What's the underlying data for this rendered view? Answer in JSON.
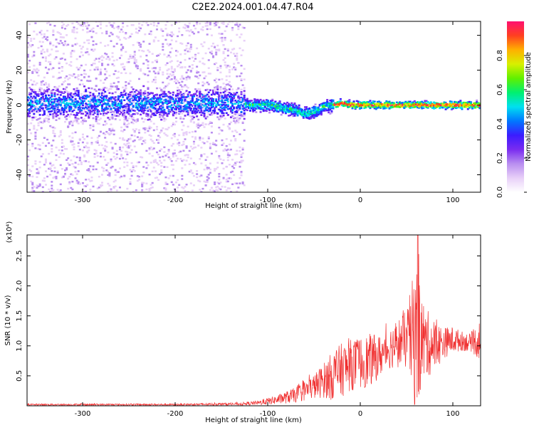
{
  "title": "C2E2.2024.001.04.47.R04",
  "chart_data": [
    {
      "type": "heatmap",
      "title": "C2E2.2024.001.04.47.R04",
      "xlabel": "Height of straight line (km)",
      "ylabel": "Frequency (Hz)",
      "xlim": [
        -360,
        130
      ],
      "ylim": [
        -50,
        48
      ],
      "xticks": [
        -300,
        -200,
        -100,
        0,
        100
      ],
      "xtick_labels": [
        "-300",
        "-200",
        "-100",
        "0",
        "100"
      ],
      "yticks": [
        -40,
        -20,
        0,
        20,
        40
      ],
      "ytick_labels": [
        "-40",
        "-20",
        "0",
        "20",
        "40"
      ],
      "colorbar": {
        "label": "Normalized spectral amplitude",
        "range": [
          0,
          1
        ],
        "ticks": [
          0.0,
          0.2,
          0.4,
          0.6,
          0.8
        ],
        "tick_labels": [
          "0.0",
          "0.2",
          "0.4",
          "0.6",
          "0.8"
        ],
        "colors": [
          "#ffffff",
          "#e8d0f8",
          "#b98ef0",
          "#7a2cf0",
          "#3b1cff",
          "#0078ff",
          "#00e0f0",
          "#00f070",
          "#60f000",
          "#d8f000",
          "#ffb000",
          "#ff4020",
          "#ff1070"
        ]
      },
      "band_center_profile": {
        "x": [
          -360,
          -300,
          -200,
          -130,
          -120,
          -100,
          -80,
          -70,
          -60,
          -50,
          -40,
          -30,
          -20,
          -10,
          0,
          50,
          100,
          130
        ],
        "freq": [
          1,
          1,
          1,
          1,
          0,
          0,
          -2,
          -3,
          -5,
          -4,
          -1,
          0,
          1,
          0,
          0,
          0,
          0,
          0
        ]
      },
      "regions": [
        {
          "name": "noise",
          "x": [
            -360,
            -125
          ],
          "freq_spread": 48,
          "band_halfwidth": 12,
          "peak_amplitude": 0.55
        },
        {
          "name": "transition",
          "x": [
            -125,
            -30
          ],
          "freq_spread": 6,
          "band_halfwidth": 5,
          "peak_amplitude": 0.7
        },
        {
          "name": "signal",
          "x": [
            -30,
            130
          ],
          "freq_spread": 3,
          "band_halfwidth": 3,
          "peak_amplitude": 1.0
        }
      ]
    },
    {
      "type": "line",
      "xlabel": "Height of straight line (km)",
      "ylabel": "SNR (10 * v/v)",
      "y_scale_label": "(x10⁴)",
      "color": "#f03030",
      "xlim": [
        -360,
        130
      ],
      "ylim": [
        0,
        2.85
      ],
      "xticks": [
        -300,
        -200,
        -100,
        0,
        100
      ],
      "xtick_labels": [
        "-300",
        "-200",
        "-100",
        "0",
        "100"
      ],
      "yticks": [
        0.5,
        1.0,
        1.5,
        2.0,
        2.5
      ],
      "ytick_labels": [
        "0.5",
        "1.0",
        "1.5",
        "2.0",
        "2.5"
      ],
      "envelope": {
        "x": [
          -360,
          -200,
          -130,
          -110,
          -90,
          -70,
          -50,
          -40,
          -30,
          -20,
          -10,
          0,
          10,
          20,
          30,
          40,
          50,
          60,
          70,
          80,
          90,
          100,
          110,
          120,
          130
        ],
        "mean": [
          0.02,
          0.02,
          0.03,
          0.05,
          0.1,
          0.18,
          0.32,
          0.42,
          0.5,
          0.6,
          0.68,
          0.72,
          0.75,
          0.82,
          0.95,
          1.05,
          1.1,
          1.15,
          1.05,
          1.0,
          1.05,
          1.1,
          1.08,
          1.05,
          1.1
        ],
        "max": [
          0.04,
          0.04,
          0.06,
          0.1,
          0.2,
          0.35,
          0.6,
          0.8,
          1.05,
          1.2,
          1.25,
          1.3,
          1.35,
          1.3,
          1.4,
          1.6,
          1.75,
          2.85,
          1.85,
          1.6,
          1.4,
          1.4,
          1.3,
          1.25,
          1.6
        ]
      }
    }
  ]
}
